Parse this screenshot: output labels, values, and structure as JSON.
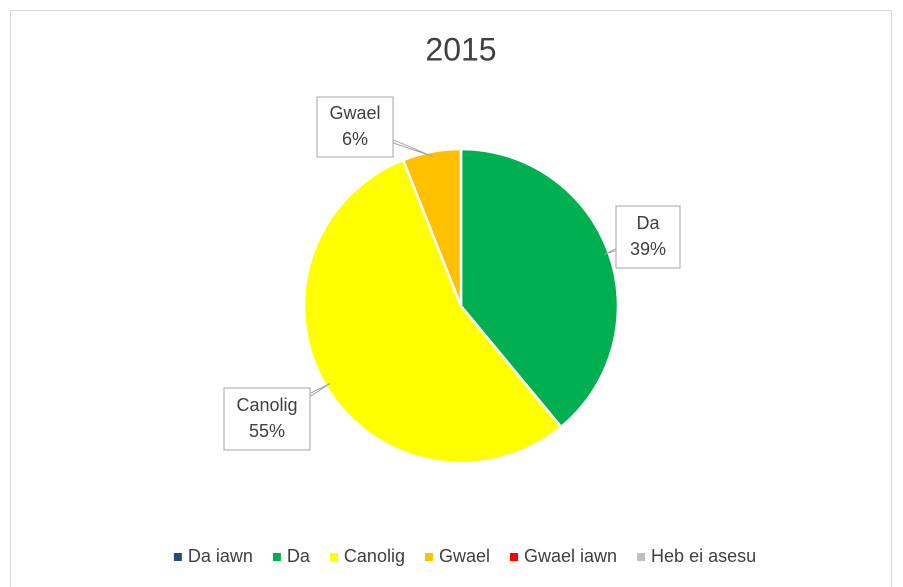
{
  "chart_data": {
    "type": "pie",
    "title": "2015",
    "categories": [
      "Da iawn",
      "Da",
      "Canolig",
      "Gwael",
      "Gwael iawn",
      "Heb ei asesu"
    ],
    "values": [
      0,
      39,
      55,
      6,
      0,
      0
    ],
    "value_labels": [
      null,
      "39%",
      "55%",
      "6%",
      null,
      null
    ],
    "colors": [
      "#1f4e79",
      "#00b050",
      "#ffff00",
      "#ffc000",
      "#ff0000",
      "#bfbfbf"
    ],
    "legend": "bottom"
  }
}
